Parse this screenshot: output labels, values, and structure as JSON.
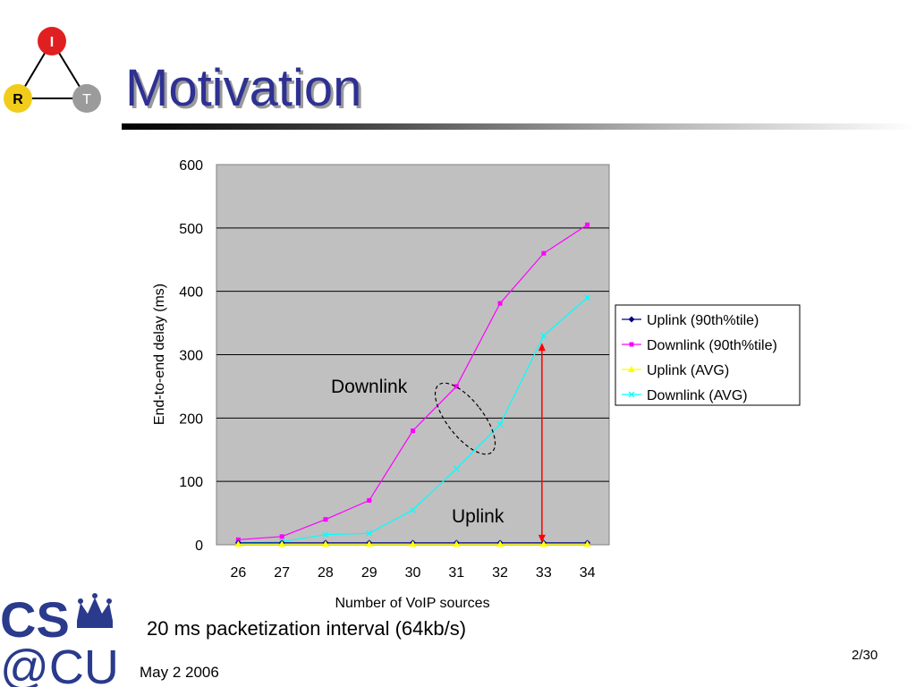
{
  "slide": {
    "title": "Motivation",
    "caption": "20 ms packetization interval (64kb/s)",
    "date": "May 2 2006",
    "page": "2/30",
    "logo_letters": [
      "I",
      "R",
      "T"
    ],
    "footer_logo": "CS@CU"
  },
  "colors": {
    "title": "#2e3192",
    "plot_bg": "#c0c0c0",
    "uplink_90": "#000080",
    "downlink_90": "#ff00ff",
    "uplink_avg": "#ffff00",
    "downlink_avg": "#00ffff",
    "arrow": "#ff0000"
  },
  "chart_data": {
    "type": "line",
    "xlabel": "Number of VoIP sources",
    "ylabel": "End-to-end delay (ms)",
    "ylim": [
      0,
      600
    ],
    "yticks": [
      0,
      100,
      200,
      300,
      400,
      500,
      600
    ],
    "grid": true,
    "legend_position": "right",
    "categories": [
      "26",
      "27",
      "28",
      "29",
      "30",
      "31",
      "32",
      "33",
      "34"
    ],
    "series": [
      {
        "name": "Uplink (90th%tile)",
        "marker": "diamond",
        "color": "#000080",
        "values": [
          3,
          3,
          3,
          3,
          3,
          3,
          3,
          3,
          3
        ]
      },
      {
        "name": "Downlink (90th%tile)",
        "marker": "square",
        "color": "#ff00ff",
        "values": [
          8,
          13,
          40,
          70,
          180,
          250,
          381,
          460,
          505
        ]
      },
      {
        "name": "Uplink (AVG)",
        "marker": "triangle",
        "color": "#ffff00",
        "values": [
          1,
          1,
          1,
          1,
          1,
          1,
          1,
          1,
          1
        ]
      },
      {
        "name": "Downlink (AVG)",
        "marker": "x",
        "color": "#00ffff",
        "values": [
          3,
          5,
          16,
          18,
          55,
          120,
          190,
          330,
          390
        ]
      }
    ],
    "annotations": {
      "downlink": "Downlink",
      "uplink": "Uplink"
    }
  }
}
